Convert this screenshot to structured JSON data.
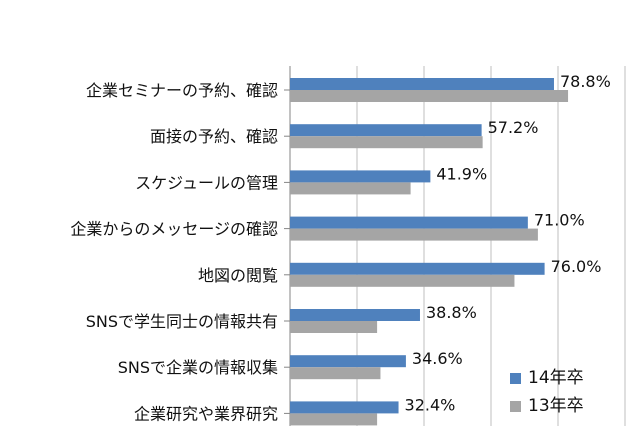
{
  "chart_data": {
    "type": "bar",
    "orientation": "horizontal",
    "categories": [
      "企業セミナーの予約、確認",
      "面接の予約、確認",
      "スケジュールの管理",
      "企業からのメッセージの確認",
      "地図の閲覧",
      "SNSで学生同士の情報共有",
      "SNSで企業の情報収集",
      "企業研究や業界研究"
    ],
    "series": [
      {
        "name": "14年卒",
        "values": [
          78.8,
          57.2,
          41.9,
          71.0,
          76.0,
          38.8,
          34.6,
          32.4
        ],
        "labels": [
          "78.8%",
          "57.2%",
          "41.9%",
          "71.0%",
          "76.0%",
          "38.8%",
          "34.6%",
          "32.4%"
        ]
      },
      {
        "name": "13年卒",
        "values": [
          83.0,
          57.5,
          36.0,
          74.0,
          67.0,
          26.0,
          27.0,
          26.0
        ]
      }
    ],
    "xlim": [
      0,
      100
    ],
    "grid": true,
    "legend_position": "bottom-right",
    "colors": {
      "s14": "#4f81bd",
      "s13": "#a5a5a5",
      "grid": "#bfbfbf",
      "axis": "#868686"
    }
  }
}
